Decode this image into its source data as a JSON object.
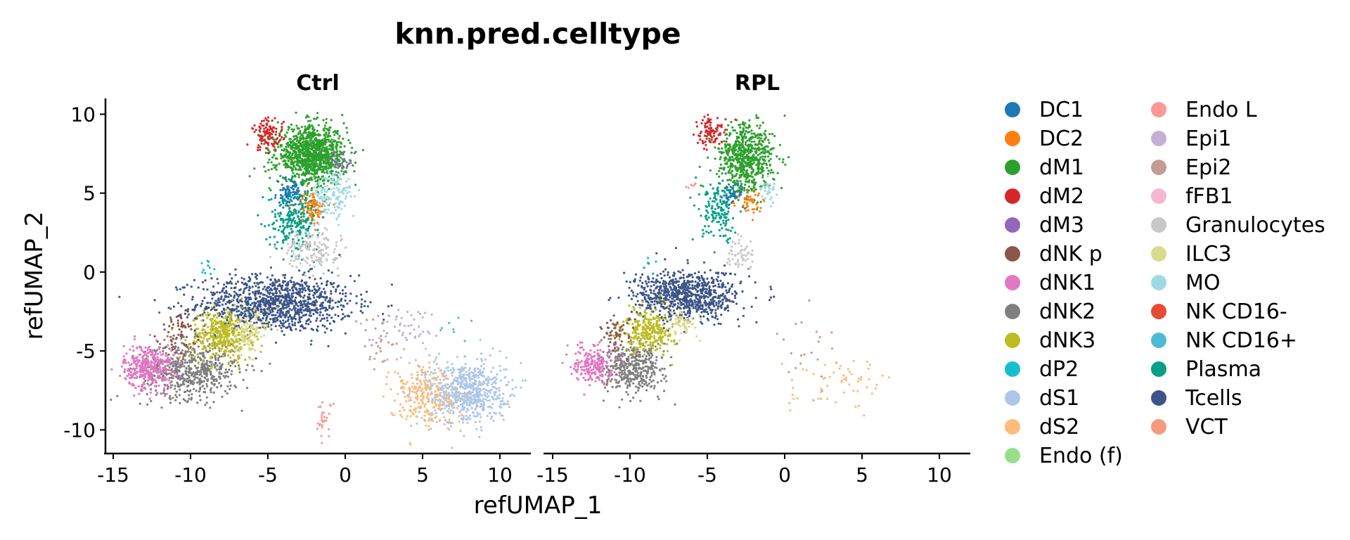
{
  "chart_data": {
    "type": "scatter",
    "title": "knn.pred.celltype",
    "xlabel": "refUMAP_1",
    "ylabel": "refUMAP_2",
    "xlim": [
      -15.5,
      12
    ],
    "ylim": [
      -11.5,
      11
    ],
    "x_ticks": [
      -15,
      -10,
      -5,
      0,
      5,
      10
    ],
    "x_tick_labels": [
      "-15",
      "-10",
      "-5",
      "0",
      "5",
      "10"
    ],
    "y_ticks": [
      10,
      5,
      0,
      -5,
      -10
    ],
    "y_tick_labels": [
      "10",
      "5",
      "0",
      "-5",
      "-10"
    ],
    "grid": false,
    "legend_position": "right",
    "legend_columns": 2,
    "facets": [
      "Ctrl",
      "RPL"
    ],
    "categories": [
      {
        "name": "DC1",
        "color": "#1F77B4"
      },
      {
        "name": "DC2",
        "color": "#FF7F0E"
      },
      {
        "name": "dM1",
        "color": "#2CA02C"
      },
      {
        "name": "dM2",
        "color": "#D62728"
      },
      {
        "name": "dM3",
        "color": "#9467BD"
      },
      {
        "name": "dNK p",
        "color": "#8C564B"
      },
      {
        "name": "dNK1",
        "color": "#E377C2"
      },
      {
        "name": "dNK2",
        "color": "#7F7F7F"
      },
      {
        "name": "dNK3",
        "color": "#BCBD22"
      },
      {
        "name": "dP2",
        "color": "#17BECF"
      },
      {
        "name": "dS1",
        "color": "#AEC7E8"
      },
      {
        "name": "dS2",
        "color": "#FFBB78"
      },
      {
        "name": "Endo (f)",
        "color": "#98DF8A"
      },
      {
        "name": "Endo L",
        "color": "#FF9896"
      },
      {
        "name": "Epi1",
        "color": "#C5B0D5"
      },
      {
        "name": "Epi2",
        "color": "#C49C94"
      },
      {
        "name": "fFB1",
        "color": "#F7B6D2"
      },
      {
        "name": "Granulocytes",
        "color": "#C7C7C7"
      },
      {
        "name": "ILC3",
        "color": "#DBDB8D"
      },
      {
        "name": "MO",
        "color": "#9EDAE5"
      },
      {
        "name": "NK CD16-",
        "color": "#E64B35"
      },
      {
        "name": "NK CD16+",
        "color": "#4DBBD5"
      },
      {
        "name": "Plasma",
        "color": "#00A087"
      },
      {
        "name": "Tcells",
        "color": "#3C5488"
      },
      {
        "name": "VCT",
        "color": "#F39B7F"
      }
    ],
    "clusters": {
      "Ctrl": [
        {
          "type": "Tcells",
          "cx": -4.5,
          "cy": -2.0,
          "sx": 2.5,
          "sy": 0.9,
          "n": 1100
        },
        {
          "type": "dNK2",
          "cx": -10.0,
          "cy": -6.2,
          "sx": 1.6,
          "sy": 0.9,
          "n": 600
        },
        {
          "type": "dNK1",
          "cx": -12.7,
          "cy": -6.0,
          "sx": 0.8,
          "sy": 0.7,
          "n": 350
        },
        {
          "type": "dNK3",
          "cx": -8.0,
          "cy": -4.0,
          "sx": 1.0,
          "sy": 0.8,
          "n": 380
        },
        {
          "type": "ILC3",
          "cx": -6.2,
          "cy": -3.8,
          "sx": 0.6,
          "sy": 0.7,
          "n": 120
        },
        {
          "type": "dNK p",
          "cx": -10.8,
          "cy": -3.8,
          "sx": 0.6,
          "sy": 0.7,
          "n": 70
        },
        {
          "type": "dM1",
          "cx": -2.2,
          "cy": 7.4,
          "sx": 1.1,
          "sy": 0.9,
          "n": 1100
        },
        {
          "type": "dM2",
          "cx": -5.0,
          "cy": 8.7,
          "sx": 0.5,
          "sy": 0.5,
          "n": 110
        },
        {
          "type": "dM3",
          "cx": -0.2,
          "cy": 7.0,
          "sx": 0.4,
          "sy": 0.4,
          "n": 25
        },
        {
          "type": "DC1",
          "cx": -3.6,
          "cy": 4.9,
          "sx": 0.4,
          "sy": 0.4,
          "n": 90
        },
        {
          "type": "DC2",
          "cx": -2.2,
          "cy": 4.1,
          "sx": 0.45,
          "sy": 0.5,
          "n": 110
        },
        {
          "type": "MO",
          "cx": -0.8,
          "cy": 4.8,
          "sx": 0.7,
          "sy": 0.8,
          "n": 140
        },
        {
          "type": "Plasma",
          "cx": -3.3,
          "cy": 3.3,
          "sx": 0.8,
          "sy": 0.9,
          "n": 220
        },
        {
          "type": "Granulocytes",
          "cx": -2.2,
          "cy": 1.4,
          "sx": 0.9,
          "sy": 0.6,
          "n": 160
        },
        {
          "type": "dS1",
          "cx": 7.8,
          "cy": -7.6,
          "sx": 1.3,
          "sy": 1.0,
          "n": 700
        },
        {
          "type": "dS2",
          "cx": 5.0,
          "cy": -7.8,
          "sx": 1.1,
          "sy": 1.0,
          "n": 230
        },
        {
          "type": "Epi1",
          "cx": 3.8,
          "cy": -3.6,
          "sx": 1.0,
          "sy": 0.7,
          "n": 50
        },
        {
          "type": "Epi2",
          "cx": 2.2,
          "cy": -4.2,
          "sx": 0.6,
          "sy": 0.9,
          "n": 30
        },
        {
          "type": "Endo L",
          "cx": -1.4,
          "cy": -9.4,
          "sx": 0.3,
          "sy": 0.6,
          "n": 30
        },
        {
          "type": "dP2",
          "cx": -8.8,
          "cy": 0.3,
          "sx": 0.4,
          "sy": 0.4,
          "n": 10
        },
        {
          "type": "NK CD16+",
          "cx": 6.7,
          "cy": -3.5,
          "sx": 0.7,
          "sy": 0.5,
          "n": 8
        }
      ],
      "RPL": [
        {
          "type": "Tcells",
          "cx": -6.3,
          "cy": -1.5,
          "sx": 1.7,
          "sy": 0.8,
          "n": 800
        },
        {
          "type": "dNK2",
          "cx": -9.8,
          "cy": -6.1,
          "sx": 1.0,
          "sy": 0.8,
          "n": 420
        },
        {
          "type": "dNK1",
          "cx": -12.4,
          "cy": -5.8,
          "sx": 0.6,
          "sy": 0.6,
          "n": 200
        },
        {
          "type": "dNK3",
          "cx": -8.8,
          "cy": -3.7,
          "sx": 0.8,
          "sy": 0.7,
          "n": 280
        },
        {
          "type": "ILC3",
          "cx": -6.5,
          "cy": -3.2,
          "sx": 0.5,
          "sy": 0.5,
          "n": 60
        },
        {
          "type": "dNK p",
          "cx": -10.8,
          "cy": -3.8,
          "sx": 0.5,
          "sy": 0.6,
          "n": 50
        },
        {
          "type": "dM1",
          "cx": -2.5,
          "cy": 7.2,
          "sx": 0.9,
          "sy": 1.1,
          "n": 650
        },
        {
          "type": "dM2",
          "cx": -4.8,
          "cy": 8.8,
          "sx": 0.5,
          "sy": 0.5,
          "n": 90
        },
        {
          "type": "DC1",
          "cx": -3.4,
          "cy": 4.9,
          "sx": 0.35,
          "sy": 0.35,
          "n": 55
        },
        {
          "type": "DC2",
          "cx": -2.2,
          "cy": 4.3,
          "sx": 0.4,
          "sy": 0.4,
          "n": 40
        },
        {
          "type": "MO",
          "cx": -1.1,
          "cy": 5.1,
          "sx": 0.4,
          "sy": 0.5,
          "n": 30
        },
        {
          "type": "Plasma",
          "cx": -4.2,
          "cy": 3.8,
          "sx": 0.6,
          "sy": 0.9,
          "n": 150
        },
        {
          "type": "Granulocytes",
          "cx": -2.8,
          "cy": 1.0,
          "sx": 0.5,
          "sy": 0.5,
          "n": 50
        },
        {
          "type": "dS2",
          "cx": 3.5,
          "cy": -7.2,
          "sx": 1.6,
          "sy": 0.8,
          "n": 60
        },
        {
          "type": "Epi2",
          "cx": 1.5,
          "cy": -4.8,
          "sx": 0.8,
          "sy": 1.1,
          "n": 20
        },
        {
          "type": "dP2",
          "cx": -8.8,
          "cy": 0.5,
          "sx": 0.3,
          "sy": 0.3,
          "n": 6
        },
        {
          "type": "Endo L",
          "cx": -5.8,
          "cy": 5.8,
          "sx": 0.3,
          "sy": 0.3,
          "n": 6
        }
      ]
    }
  }
}
